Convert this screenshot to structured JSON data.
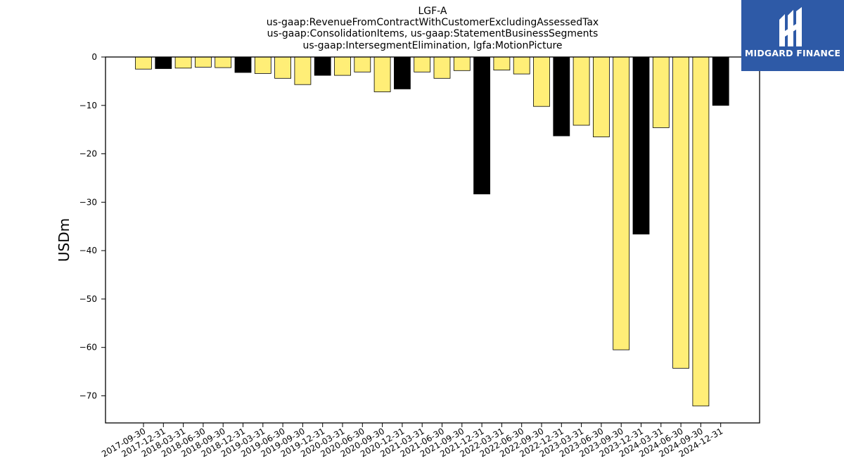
{
  "brand": {
    "name": "MIDGARD FINANCE",
    "background": "#2e5aa7",
    "mark_icon": "midgard-logo-icon"
  },
  "chart_data": {
    "type": "bar",
    "title_lines": [
      "LGF-A",
      "us-gaap:RevenueFromContractWithCustomerExcludingAssessedTax",
      "us-gaap:ConsolidationItems, us-gaap:StatementBusinessSegments",
      "us-gaap:IntersegmentElimination, lgfa:MotionPicture"
    ],
    "xlabel": "",
    "ylabel": "USDm",
    "ylim": [
      -75.6,
      0
    ],
    "yticks": [
      0,
      -10,
      -20,
      -30,
      -40,
      -50,
      -60,
      -70
    ],
    "ytick_labels": [
      "0",
      "−10",
      "−20",
      "−30",
      "−40",
      "−50",
      "−60",
      "−70"
    ],
    "colors": {
      "quarter": "#ffee77",
      "year_end": "#000000",
      "edge": "#000000"
    },
    "categories": [
      "2017-09-30",
      "2017-12-31",
      "2018-03-31",
      "2018-06-30",
      "2018-09-30",
      "2018-12-31",
      "2019-03-31",
      "2019-06-30",
      "2019-09-30",
      "2019-12-31",
      "2020-03-31",
      "2020-06-30",
      "2020-09-30",
      "2020-12-31",
      "2021-03-31",
      "2021-06-30",
      "2021-09-30",
      "2021-12-31",
      "2022-03-31",
      "2022-06-30",
      "2022-09-30",
      "2022-12-31",
      "2023-03-31",
      "2023-06-30",
      "2023-09-30",
      "2023-12-31",
      "2024-03-31",
      "2024-06-30",
      "2024-09-30",
      "2024-12-31"
    ],
    "values": [
      -2.5,
      -2.4,
      -2.3,
      -2.1,
      -2.2,
      -3.2,
      -3.4,
      -4.4,
      -5.7,
      -3.8,
      -3.8,
      -3.1,
      -7.2,
      -6.6,
      -3.1,
      -4.4,
      -2.8,
      -28.3,
      -2.7,
      -3.5,
      -10.2,
      -16.3,
      -14.1,
      -16.5,
      -60.5,
      -36.6,
      -14.6,
      -64.3,
      -72.1,
      -10.0
    ],
    "year_end_flags": [
      false,
      true,
      false,
      false,
      false,
      true,
      false,
      false,
      false,
      true,
      false,
      false,
      false,
      true,
      false,
      false,
      false,
      true,
      false,
      false,
      false,
      true,
      false,
      false,
      false,
      true,
      false,
      false,
      false,
      true
    ],
    "grid": false,
    "legend": "none"
  }
}
